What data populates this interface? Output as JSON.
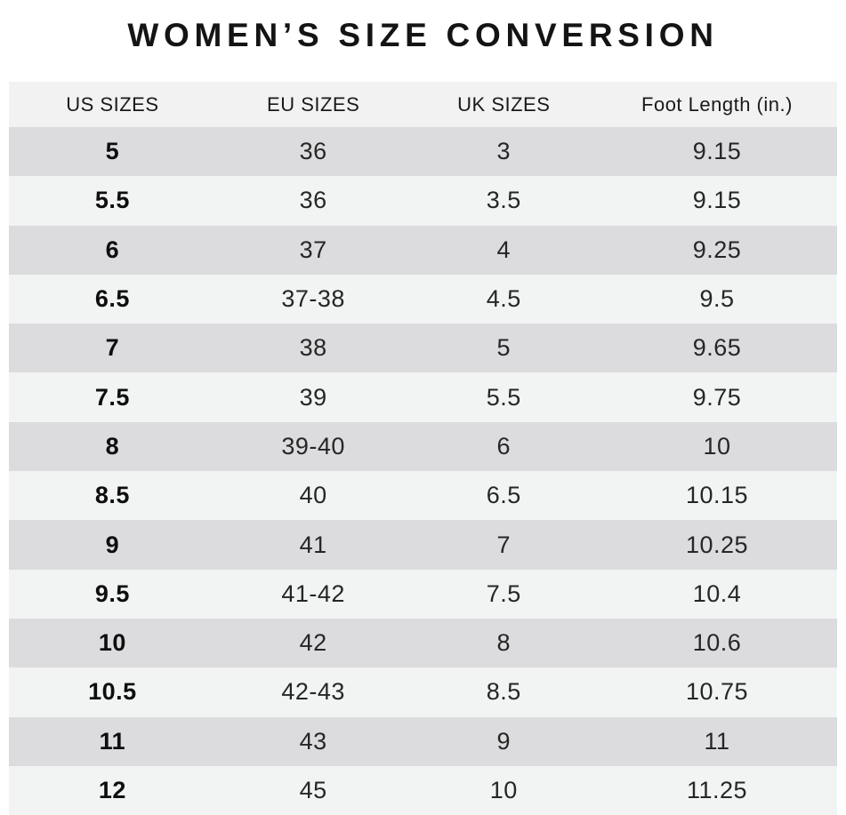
{
  "page": {
    "title": "WOMEN’S SIZE CONVERSION"
  },
  "colors": {
    "page_bg": "#ffffff",
    "header_bg": "#f2f2f3",
    "row_dark": "#dcdcde",
    "row_light": "#f2f3f3",
    "title_color": "#141414",
    "text_color": "#262626",
    "bold_text_color": "#0e0e0e"
  },
  "table": {
    "headers": [
      "US SIZES",
      "EU SIZES",
      "UK SIZES",
      "Foot Length (in.)"
    ],
    "rows": [
      [
        "5",
        "36",
        "3",
        "9.15"
      ],
      [
        "5.5",
        "36",
        "3.5",
        "9.15"
      ],
      [
        "6",
        "37",
        "4",
        "9.25"
      ],
      [
        "6.5",
        "37-38",
        "4.5",
        "9.5"
      ],
      [
        "7",
        "38",
        "5",
        "9.65"
      ],
      [
        "7.5",
        "39",
        "5.5",
        "9.75"
      ],
      [
        "8",
        "39-40",
        "6",
        "10"
      ],
      [
        "8.5",
        "40",
        "6.5",
        "10.15"
      ],
      [
        "9",
        "41",
        "7",
        "10.25"
      ],
      [
        "9.5",
        "41-42",
        "7.5",
        "10.4"
      ],
      [
        "10",
        "42",
        "8",
        "10.6"
      ],
      [
        "10.5",
        "42-43",
        "8.5",
        "10.75"
      ],
      [
        "11",
        "43",
        "9",
        "11"
      ],
      [
        "12",
        "45",
        "10",
        "11.25"
      ]
    ]
  },
  "chart_data": {
    "type": "table",
    "title": "WOMEN’S SIZE CONVERSION",
    "columns": [
      "US SIZES",
      "EU SIZES",
      "UK SIZES",
      "Foot Length (in.)"
    ],
    "rows": [
      [
        "5",
        "36",
        "3",
        "9.15"
      ],
      [
        "5.5",
        "36",
        "3.5",
        "9.15"
      ],
      [
        "6",
        "37",
        "4",
        "9.25"
      ],
      [
        "6.5",
        "37-38",
        "4.5",
        "9.5"
      ],
      [
        "7",
        "38",
        "5",
        "9.65"
      ],
      [
        "7.5",
        "39",
        "5.5",
        "9.75"
      ],
      [
        "8",
        "39-40",
        "6",
        "10"
      ],
      [
        "8.5",
        "40",
        "6.5",
        "10.15"
      ],
      [
        "9",
        "41",
        "7",
        "10.25"
      ],
      [
        "9.5",
        "41-42",
        "7.5",
        "10.4"
      ],
      [
        "10",
        "42",
        "8",
        "10.6"
      ],
      [
        "10.5",
        "42-43",
        "8.5",
        "10.75"
      ],
      [
        "11",
        "43",
        "9",
        "11"
      ],
      [
        "12",
        "45",
        "10",
        "11.25"
      ]
    ],
    "layout": {
      "row_striping": "alternating dark/light gray starting dark",
      "first_column_bold": true,
      "alignment": "center"
    }
  }
}
